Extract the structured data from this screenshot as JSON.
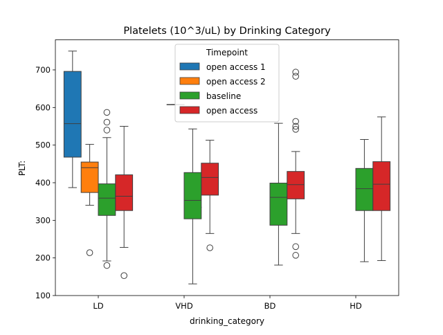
{
  "chart_data": {
    "type": "box",
    "title": "Platelets (10^3/uL) by Drinking Category",
    "xlabel": "drinking_category",
    "ylabel": "PLT:",
    "ylim": [
      100,
      780
    ],
    "yticks": [
      100,
      200,
      300,
      400,
      500,
      600,
      700
    ],
    "categories": [
      "LD",
      "VHD",
      "BD",
      "HD"
    ],
    "legend": {
      "title": "Timepoint",
      "position": "upper center"
    },
    "series": [
      {
        "name": "open access 1",
        "color": "#1f77b4",
        "boxes": [
          {
            "category": "LD",
            "whislo": 387,
            "q1": 468,
            "med": 557,
            "q3": 696,
            "whishi": 750,
            "fliers": []
          },
          null,
          null,
          null
        ]
      },
      {
        "name": "open access 2",
        "color": "#ff7f0e",
        "boxes": [
          {
            "category": "LD",
            "whislo": 340,
            "q1": 374,
            "med": 440,
            "q3": 455,
            "whishi": 502,
            "fliers": [
              214
            ]
          },
          {
            "category": "VHD",
            "whislo": 608,
            "q1": 608,
            "med": 608,
            "q3": 608,
            "whishi": 608,
            "fliers": []
          },
          null,
          null
        ]
      },
      {
        "name": "baseline",
        "color": "#2ca02c",
        "boxes": [
          {
            "category": "LD",
            "whislo": 192,
            "q1": 313,
            "med": 359,
            "q3": 397,
            "whishi": 520,
            "fliers": [
              587,
              561,
              540,
              180
            ]
          },
          {
            "category": "VHD",
            "whislo": 335,
            "q1": 335,
            "med": 335,
            "q3": 335,
            "whishi": 335,
            "fliers": []
          },
          {
            "category": "BD",
            "whislo": 181,
            "q1": 287,
            "med": 361,
            "q3": 399,
            "whishi": 558,
            "fliers": []
          },
          {
            "category": "HD",
            "whislo": 190,
            "q1": 326,
            "med": 384,
            "q3": 438,
            "whishi": 515,
            "fliers": []
          }
        ]
      },
      {
        "name": "open access",
        "color": "#d62728",
        "boxes": [
          {
            "category": "LD",
            "whislo": 228,
            "q1": 326,
            "med": 364,
            "q3": 421,
            "whishi": 550,
            "fliers": [
              153
            ]
          },
          {
            "category": "VHD",
            "whislo": 265,
            "q1": 367,
            "med": 414,
            "q3": 452,
            "whishi": 513,
            "fliers": [
              227
            ]
          },
          {
            "category": "BD",
            "whislo": 265,
            "q1": 357,
            "med": 395,
            "q3": 430,
            "whishi": 483,
            "fliers": [
              694,
              683,
              563,
              550,
              542,
              230,
              207
            ]
          },
          {
            "category": "HD",
            "whislo": 193,
            "q1": 326,
            "med": 396,
            "q3": 456,
            "whishi": 575,
            "fliers": []
          }
        ]
      }
    ],
    "extra_boxes": [
      {
        "category": "VHD",
        "series": "baseline",
        "whislo": 131,
        "q1": 304,
        "med": 353,
        "q3": 427,
        "whishi": 543,
        "fliers": []
      }
    ]
  }
}
